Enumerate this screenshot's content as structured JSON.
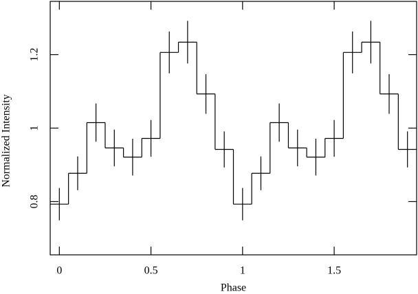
{
  "chart_data": {
    "type": "step",
    "x_label": "Phase",
    "y_label": "Normalized Intensity",
    "x": [
      0,
      0.1,
      0.2,
      0.3,
      0.4,
      0.5,
      0.6,
      0.7,
      0.8,
      0.9,
      1.0,
      1.1,
      1.2,
      1.3,
      1.4,
      1.5,
      1.6,
      1.7,
      1.8,
      1.9
    ],
    "values": [
      0.793,
      0.877,
      1.015,
      0.946,
      0.921,
      0.972,
      1.206,
      1.234,
      1.093,
      0.942,
      0.793,
      0.877,
      1.015,
      0.946,
      0.921,
      0.972,
      1.206,
      1.234,
      1.093,
      0.942
    ],
    "errors": [
      0.044,
      0.046,
      0.052,
      0.05,
      0.05,
      0.05,
      0.057,
      0.058,
      0.054,
      0.049,
      0.044,
      0.046,
      0.052,
      0.05,
      0.05,
      0.05,
      0.057,
      0.058,
      0.054,
      0.049
    ],
    "color": "#000000",
    "xlim": [
      -0.05,
      1.95
    ],
    "ylim": [
      0.655,
      1.345
    ],
    "xticks": [
      0,
      0.5,
      1,
      1.5
    ],
    "yticks": [
      0.8,
      1,
      1.2
    ]
  }
}
